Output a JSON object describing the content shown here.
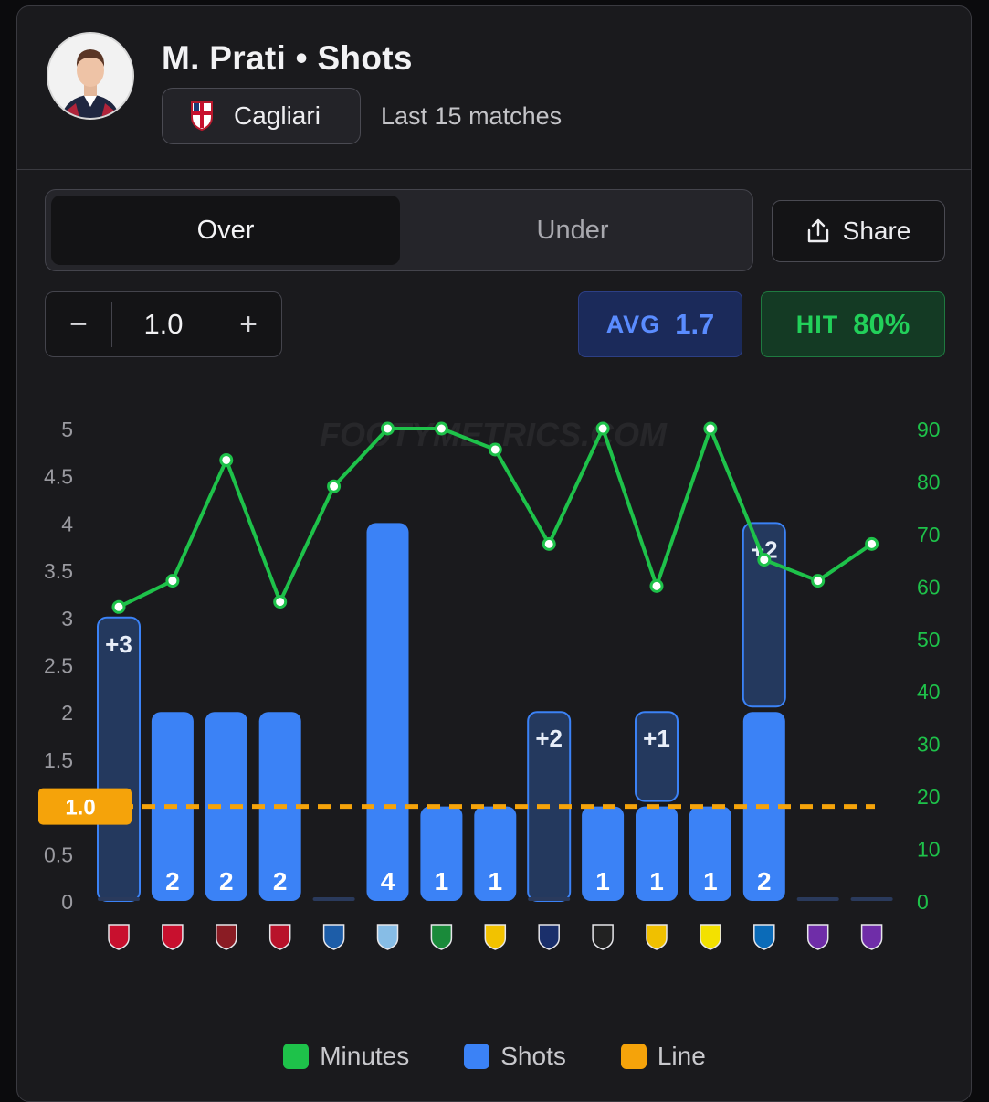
{
  "header": {
    "title": "M. Prati • Shots",
    "team": "Cagliari",
    "subtitle": "Last 15 matches"
  },
  "controls": {
    "toggle_over": "Over",
    "toggle_under": "Under",
    "share_label": "Share",
    "minus_symbol": "−",
    "plus_symbol": "+",
    "line_value": "1.0",
    "avg_label": "AVG",
    "avg_value": "1.7",
    "hit_label": "HIT",
    "hit_value": "80%"
  },
  "watermark": "FOOTYMETRICS.COM",
  "colors": {
    "minutes": "#1ec24a",
    "shots": "#3b82f6",
    "line": "#f5a30a",
    "avg": "#5a8cff",
    "hit": "#22d05a"
  },
  "legend": {
    "minutes": "Minutes",
    "shots": "Shots",
    "line": "Line"
  },
  "chart_data": {
    "type": "bar",
    "line_value": 1.0,
    "line_label": "1.0",
    "y_left": {
      "ticks": [
        "0",
        "0.5",
        "1",
        "1.5",
        "2",
        "2.5",
        "3",
        "3.5",
        "4",
        "4.5",
        "5"
      ],
      "range": [
        0,
        5
      ]
    },
    "y_right": {
      "ticks": [
        "0",
        "10",
        "20",
        "30",
        "40",
        "50",
        "60",
        "70",
        "80",
        "90"
      ],
      "range": [
        0,
        90
      ]
    },
    "opponent_icons": [
      "cremonese-crest-icon",
      "milan-crest-icon",
      "torino-crest-icon",
      "genoa-crest-icon",
      "como-crest-icon",
      "lazio-crest-icon",
      "sassuolo-crest-icon",
      "verona-crest-icon",
      "bologna-crest-icon",
      "udinese-crest-icon",
      "lecce-crest-icon",
      "parma-crest-icon",
      "napoli-crest-icon",
      "fiorentina-crest-icon",
      "fiorentina-crest-icon"
    ],
    "series": [
      {
        "name": "Shots",
        "values": [
          0,
          2,
          2,
          2,
          0,
          4,
          1,
          1,
          0,
          1,
          1,
          1,
          2,
          0,
          0
        ],
        "labels": [
          "",
          "2",
          "2",
          "2",
          "",
          "4",
          "1",
          "1",
          "",
          "1",
          "1",
          "1",
          "2",
          "",
          ""
        ]
      },
      {
        "name": "Minutes",
        "values": [
          56,
          61,
          84,
          57,
          79,
          90,
          90,
          86,
          68,
          90,
          60,
          90,
          65,
          61,
          68
        ]
      }
    ],
    "shots_on_target": [
      {
        "index": 0,
        "value": 3,
        "label": "+3"
      },
      {
        "index": 8,
        "value": 2,
        "label": "+2"
      },
      {
        "index": 10,
        "value": 1,
        "label": "+1"
      },
      {
        "index": 12,
        "value": 2,
        "label": "+2"
      }
    ],
    "legend": [
      "Minutes",
      "Shots",
      "Line"
    ]
  }
}
